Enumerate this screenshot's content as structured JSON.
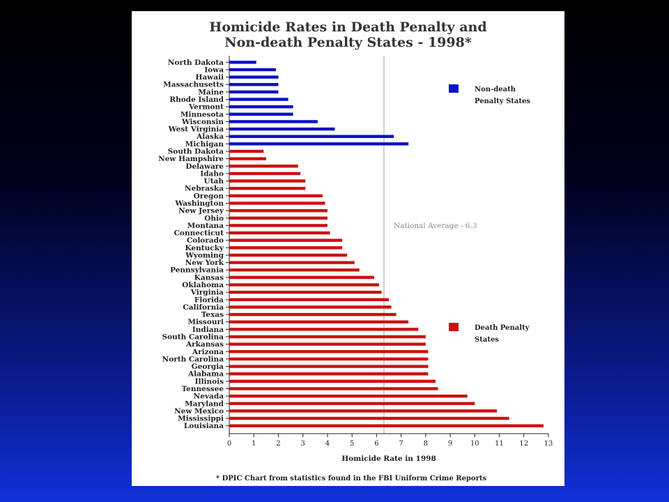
{
  "chart_data": {
    "type": "bar",
    "orientation": "horizontal",
    "title": [
      "Homicide Rates in Death Penalty and",
      "Non-death Penalty States - 1998*"
    ],
    "xlabel": "Homicide Rate in 1998",
    "xlim": [
      0,
      13
    ],
    "xticks": [
      "0",
      "1",
      "2",
      "3",
      "4",
      "5",
      "6",
      "7",
      "8",
      "9",
      "10",
      "11",
      "12",
      "13"
    ],
    "reference_line": {
      "value": 6.3,
      "label": "National Average - 6.3"
    },
    "footnote": "* DPIC Chart from statistics found in the FBI Uniform Crime Reports",
    "series": [
      {
        "name": "Non-death Penalty States",
        "legend_lines": [
          "Non-death",
          "Penalty States"
        ],
        "color": "#0a10c8",
        "categories": [
          "North Dakota",
          "Iowa",
          "Hawaii",
          "Massachusetts",
          "Maine",
          "Rhode Island",
          "Vermont",
          "Minnesota",
          "Wisconsin",
          "West Virginia",
          "Alaska",
          "Michigan"
        ],
        "values": [
          1.1,
          1.9,
          2.0,
          2.0,
          2.0,
          2.4,
          2.6,
          2.6,
          3.6,
          4.3,
          6.7,
          7.3
        ]
      },
      {
        "name": "Death Penalty States",
        "legend_lines": [
          "Death Penalty",
          "States"
        ],
        "color": "#cc1111",
        "categories": [
          "South Dakota",
          "New Hampshire",
          "Delaware",
          "Idaho",
          "Utah",
          "Nebraska",
          "Oregon",
          "Washington",
          "New Jersey",
          "Ohio",
          "Montana",
          "Connecticut",
          "Colorado",
          "Kentucky",
          "Wyoming",
          "New York",
          "Pennsylvania",
          "Kansas",
          "Oklahoma",
          "Virginia",
          "Florida",
          "California",
          "Texas",
          "Missouri",
          "Indiana",
          "South Carolina",
          "Arkansas",
          "Arizona",
          "North Carolina",
          "Georgia",
          "Alabama",
          "Illinois",
          "Tennessee",
          "Nevada",
          "Maryland",
          "New Mexico",
          "Mississippi",
          "Louisiana"
        ],
        "values": [
          1.4,
          1.5,
          2.8,
          2.9,
          3.1,
          3.1,
          3.8,
          3.9,
          4.0,
          4.0,
          4.0,
          4.1,
          4.6,
          4.6,
          4.8,
          5.1,
          5.3,
          5.9,
          6.1,
          6.2,
          6.5,
          6.6,
          6.8,
          7.3,
          7.7,
          8.0,
          8.0,
          8.1,
          8.1,
          8.1,
          8.1,
          8.4,
          8.5,
          9.7,
          10.0,
          10.9,
          11.4,
          12.8
        ]
      }
    ]
  }
}
